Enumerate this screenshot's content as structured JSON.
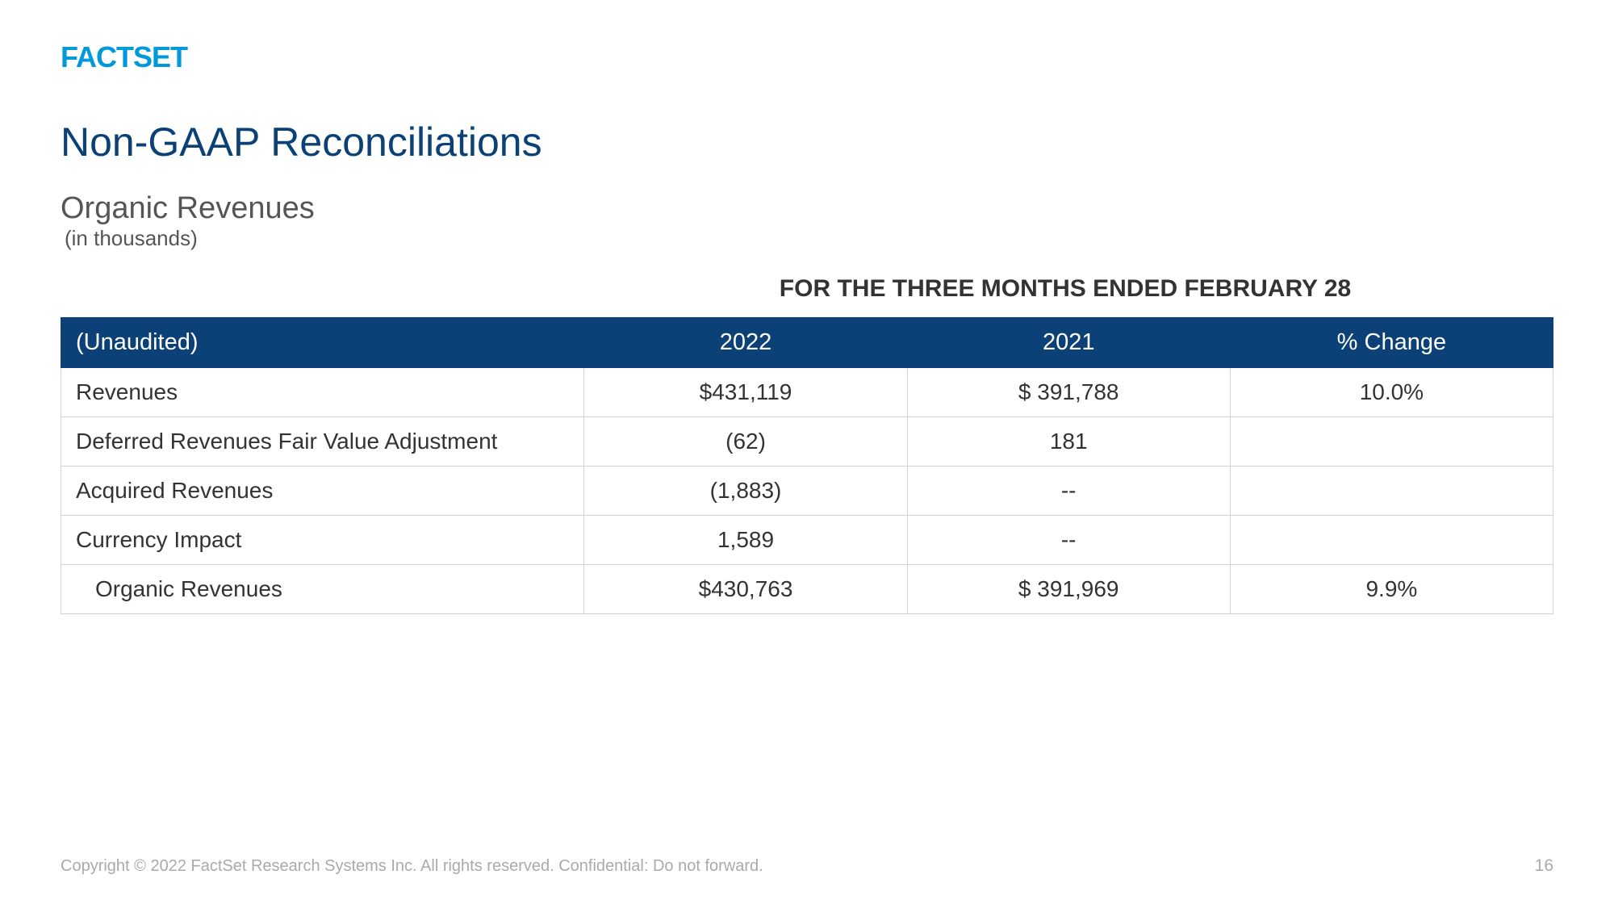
{
  "logo": "FACTSET",
  "title": "Non-GAAP Reconciliations",
  "subtitle": "Organic Revenues",
  "subtitle_note": "(in thousands)",
  "period_header": "FOR THE THREE MONTHS ENDED FEBRUARY 28",
  "table": {
    "type": "table",
    "header_bg_color": "#0b4177",
    "header_text_color": "#ffffff",
    "border_color": "#d0d0d0",
    "row_text_color": "#333333",
    "columns": [
      "(Unaudited)",
      "2022",
      "2021",
      "% Change"
    ],
    "column_widths": [
      "35%",
      "21.6%",
      "21.6%",
      "21.6%"
    ],
    "column_alignment": [
      "left",
      "center",
      "center",
      "center"
    ],
    "header_fontsize": 29,
    "cell_fontsize": 28,
    "rows": [
      {
        "label": "Revenues",
        "col_2022": "$431,119",
        "col_2021": "$ 391,788",
        "change": "10.0%",
        "indent": false
      },
      {
        "label": "Deferred Revenues Fair Value Adjustment",
        "col_2022": "(62)",
        "col_2021": "181",
        "change": "",
        "indent": false
      },
      {
        "label": "Acquired Revenues",
        "col_2022": "(1,883)",
        "col_2021": "--",
        "change": "",
        "indent": false
      },
      {
        "label": "Currency Impact",
        "col_2022": "1,589",
        "col_2021": "--",
        "change": "",
        "indent": false
      },
      {
        "label": "Organic Revenues",
        "col_2022": "$430,763",
        "col_2021": "$ 391,969",
        "change": "9.9%",
        "indent": true
      }
    ]
  },
  "footer": {
    "copyright": "Copyright © 2022 FactSet Research Systems Inc. All rights reserved. Confidential: Do not forward.",
    "page_number": "16"
  },
  "colors": {
    "logo_color": "#0099d9",
    "title_color": "#0b4177",
    "subtitle_color": "#555555",
    "footer_color": "#aaaaaa",
    "background_color": "#ffffff"
  }
}
